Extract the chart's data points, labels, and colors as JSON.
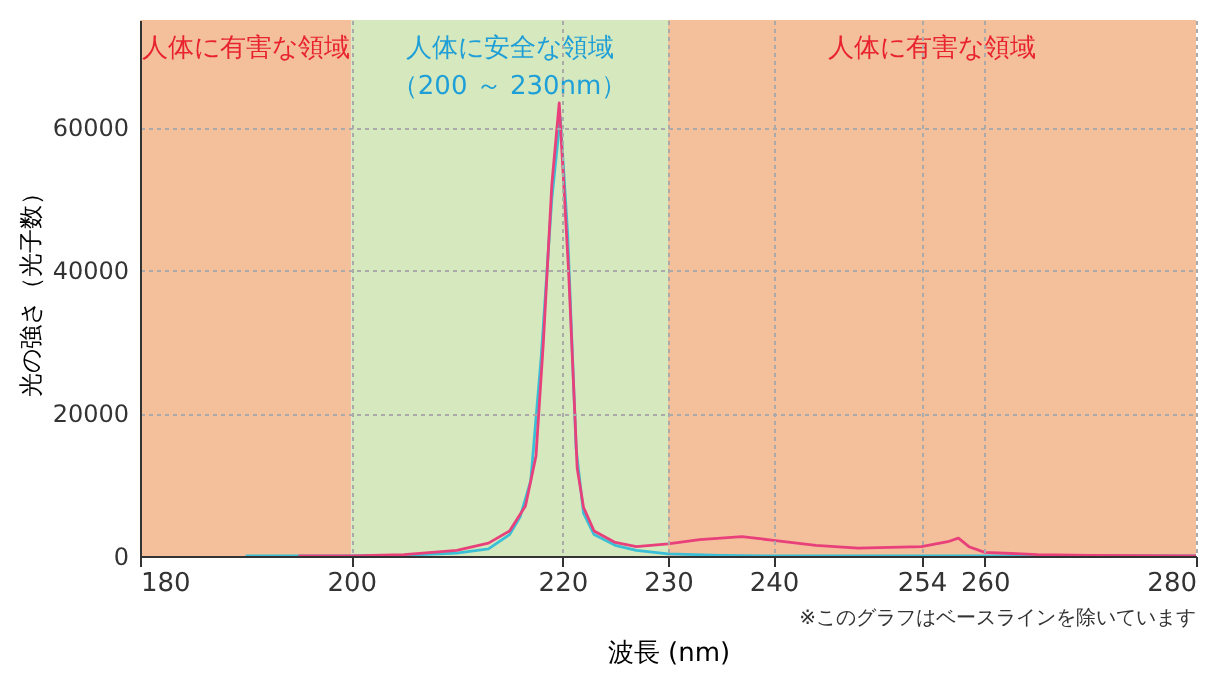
{
  "chart_data": {
    "type": "line",
    "xlabel": "波長 (nm)",
    "ylabel": "光の強さ（光子数）",
    "xlim": [
      180,
      280
    ],
    "xticks": [
      180,
      200,
      220,
      230,
      240,
      254,
      260,
      280
    ],
    "ylim": [
      0,
      75000
    ],
    "yticks": [
      0,
      20000,
      40000,
      60000
    ],
    "grid": true,
    "marker": "none",
    "line_style": "solid",
    "bands": [
      {
        "axis": "x",
        "from": 180,
        "to": 200,
        "label": "人体に有害な領域",
        "color": "#f4bf9b"
      },
      {
        "axis": "x",
        "from": 200,
        "to": 230,
        "label": "人体に安全な領域（200 ～ 230nm）",
        "color": "#d6e8bd"
      },
      {
        "axis": "x",
        "from": 230,
        "to": 280,
        "label": "人体に有害な領域",
        "color": "#f4bf9b"
      }
    ],
    "annotations": [
      "※このグラフはベースラインを除いています"
    ],
    "series": [
      {
        "color": "#3bbfd6",
        "x": [
          190,
          200,
          205,
          210,
          213,
          215,
          216,
          217,
          218,
          219,
          219.8,
          220.5,
          221.3,
          222,
          223,
          225,
          227,
          230,
          235,
          240,
          260,
          280
        ],
        "values": [
          0,
          0,
          100,
          400,
          1000,
          3000,
          5500,
          10500,
          28000,
          50000,
          61400,
          45000,
          15000,
          6000,
          3000,
          1500,
          800,
          300,
          100,
          0,
          0,
          0
        ]
      },
      {
        "color": "#e8407a",
        "x": [
          195,
          200,
          205,
          210,
          213,
          215,
          216.5,
          217.5,
          218.2,
          219,
          219.7,
          220.6,
          221.4,
          222,
          223,
          225,
          227,
          230,
          233,
          237,
          240,
          244,
          248,
          254,
          256.5,
          257.5,
          258.5,
          260,
          265,
          270,
          280
        ],
        "values": [
          0,
          0,
          200,
          800,
          1800,
          3500,
          7000,
          14000,
          30000,
          52000,
          63400,
          39500,
          12300,
          6800,
          3500,
          1900,
          1300,
          1700,
          2300,
          2700,
          2200,
          1500,
          1100,
          1300,
          2000,
          2500,
          1300,
          500,
          200,
          100,
          0
        ]
      }
    ]
  }
}
